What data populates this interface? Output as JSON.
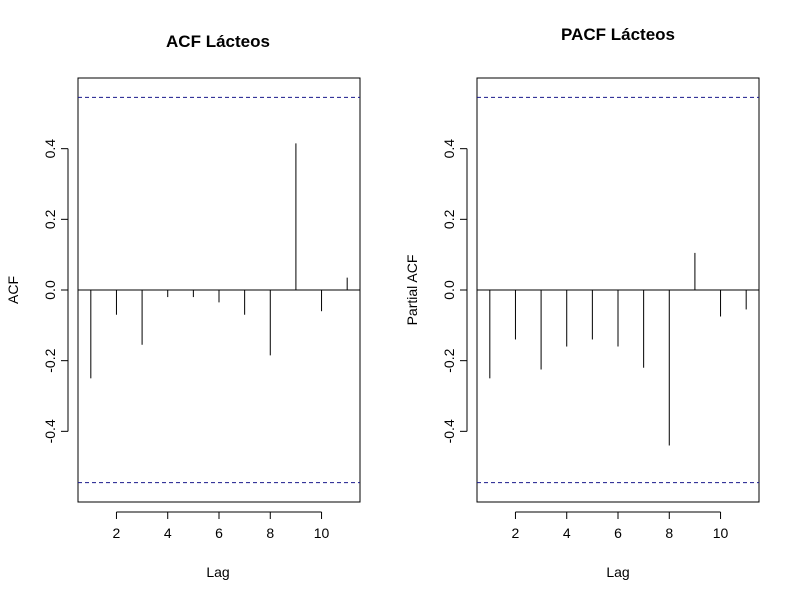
{
  "chart_data": [
    {
      "type": "bar",
      "title": "ACF Lácteos",
      "xlabel": "Lag",
      "ylabel": "ACF",
      "xlim": [
        0.5,
        11.5
      ],
      "ylim": [
        -0.6,
        0.6
      ],
      "x_ticks": [
        2,
        4,
        6,
        8,
        10
      ],
      "y_ticks": [
        -0.4,
        -0.2,
        0.0,
        0.2,
        0.4
      ],
      "x_tick_labels": [
        "2",
        "4",
        "6",
        "8",
        "10"
      ],
      "y_tick_labels": [
        "-0.4",
        "-0.2",
        "0.0",
        "0.2",
        "0.4"
      ],
      "lags": [
        1,
        2,
        3,
        4,
        5,
        6,
        7,
        8,
        9,
        10,
        11
      ],
      "values": [
        -0.25,
        -0.07,
        -0.155,
        -0.02,
        -0.02,
        -0.035,
        -0.07,
        -0.185,
        0.415,
        -0.06,
        0.035
      ],
      "confidence_bounds": [
        -0.545,
        0.545
      ],
      "bound_color": "#1a1a8c"
    },
    {
      "type": "bar",
      "title": "PACF Lácteos",
      "xlabel": "Lag",
      "ylabel": "Partial ACF",
      "xlim": [
        0.5,
        11.5
      ],
      "ylim": [
        -0.6,
        0.6
      ],
      "x_ticks": [
        2,
        4,
        6,
        8,
        10
      ],
      "y_ticks": [
        -0.4,
        -0.2,
        0.0,
        0.2,
        0.4
      ],
      "x_tick_labels": [
        "2",
        "4",
        "6",
        "8",
        "10"
      ],
      "y_tick_labels": [
        "-0.4",
        "-0.2",
        "0.0",
        "0.2",
        "0.4"
      ],
      "lags": [
        1,
        2,
        3,
        4,
        5,
        6,
        7,
        8,
        9,
        10,
        11
      ],
      "values": [
        -0.25,
        -0.14,
        -0.225,
        -0.16,
        -0.14,
        -0.16,
        -0.22,
        -0.44,
        0.105,
        -0.075,
        -0.055
      ],
      "confidence_bounds": [
        -0.545,
        0.545
      ],
      "bound_color": "#1a1a8c"
    }
  ]
}
